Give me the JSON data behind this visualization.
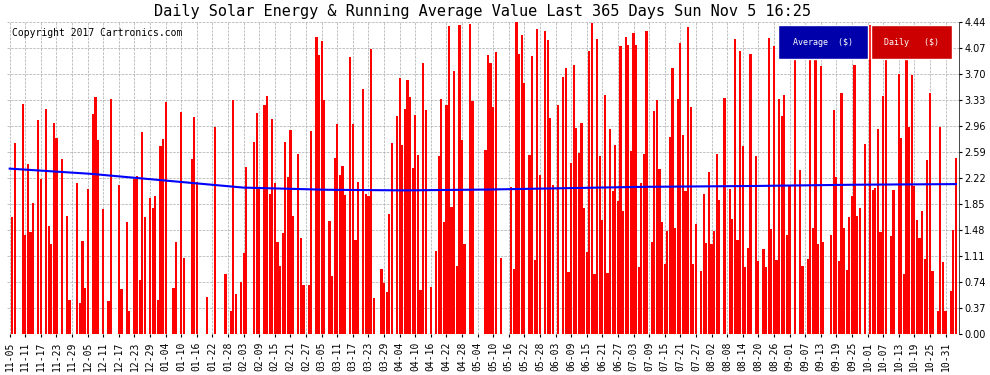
{
  "title": "Daily Solar Energy & Running Average Value Last 365 Days Sun Nov 5 16:25",
  "copyright": "Copyright 2017 Cartronics.com",
  "y_ticks": [
    0.0,
    0.37,
    0.74,
    1.11,
    1.48,
    1.85,
    2.22,
    2.59,
    2.96,
    3.33,
    3.7,
    4.07,
    4.44
  ],
  "ylim": [
    0,
    4.44
  ],
  "bar_color": "#FF0000",
  "avg_color": "#0000FF",
  "bg_color": "#FFFFFF",
  "plot_bg_color": "#FFFFFF",
  "grid_color": "#AAAAAA",
  "legend_avg_bg": "#0000AA",
  "legend_daily_bg": "#CC0000",
  "title_fontsize": 11,
  "copyright_fontsize": 7,
  "tick_fontsize": 7,
  "x_labels": [
    "11-05",
    "11-11",
    "11-17",
    "11-23",
    "11-29",
    "12-05",
    "12-11",
    "12-17",
    "12-23",
    "12-29",
    "01-04",
    "01-10",
    "01-16",
    "01-22",
    "01-28",
    "02-03",
    "02-09",
    "02-15",
    "02-21",
    "02-27",
    "03-05",
    "03-11",
    "03-17",
    "03-23",
    "03-29",
    "04-04",
    "04-10",
    "04-16",
    "04-22",
    "04-28",
    "05-04",
    "05-10",
    "05-16",
    "05-22",
    "05-28",
    "06-03",
    "06-09",
    "06-15",
    "06-21",
    "06-27",
    "07-03",
    "07-09",
    "07-15",
    "07-21",
    "07-27",
    "08-02",
    "08-08",
    "08-14",
    "08-20",
    "08-26",
    "09-01",
    "09-07",
    "09-13",
    "09-19",
    "09-25",
    "10-01",
    "10-07",
    "10-13",
    "10-19",
    "10-25",
    "10-31"
  ]
}
